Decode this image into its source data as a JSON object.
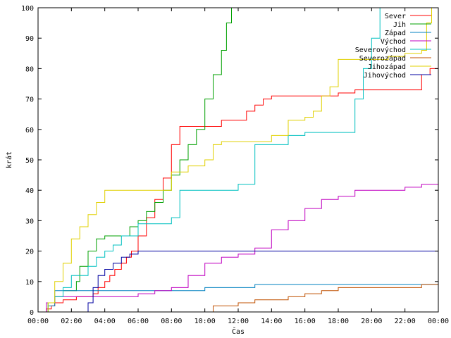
{
  "chart_data": {
    "type": "line",
    "xlabel": "Čas",
    "ylabel": "krát",
    "xlim": [
      0,
      24
    ],
    "ylim": [
      0,
      100
    ],
    "grid": false,
    "legend_position": "top-right",
    "x_ticks": [
      {
        "v": 0,
        "label": "00:00"
      },
      {
        "v": 2,
        "label": "02:00"
      },
      {
        "v": 4,
        "label": "04:00"
      },
      {
        "v": 6,
        "label": "06:00"
      },
      {
        "v": 8,
        "label": "08:00"
      },
      {
        "v": 10,
        "label": "10:00"
      },
      {
        "v": 12,
        "label": "12:00"
      },
      {
        "v": 14,
        "label": "14:00"
      },
      {
        "v": 16,
        "label": "16:00"
      },
      {
        "v": 18,
        "label": "18:00"
      },
      {
        "v": 20,
        "label": "20:00"
      },
      {
        "v": 22,
        "label": "22:00"
      },
      {
        "v": 24,
        "label": "00:00"
      }
    ],
    "y_ticks": [
      {
        "v": 0,
        "label": "0"
      },
      {
        "v": 10,
        "label": "10"
      },
      {
        "v": 20,
        "label": "20"
      },
      {
        "v": 30,
        "label": "30"
      },
      {
        "v": 40,
        "label": "40"
      },
      {
        "v": 50,
        "label": "50"
      },
      {
        "v": 60,
        "label": "60"
      },
      {
        "v": 70,
        "label": "70"
      },
      {
        "v": 80,
        "label": "80"
      },
      {
        "v": 90,
        "label": "90"
      },
      {
        "v": 100,
        "label": "100"
      }
    ],
    "series": [
      {
        "name": "Sever",
        "color": "#ff0000",
        "x": [
          0.3,
          0.5,
          0.8,
          1.0,
          1.5,
          2.3,
          3.0,
          3.3,
          3.6,
          4.0,
          4.3,
          4.6,
          5.0,
          5.3,
          5.6,
          6.0,
          6.5,
          7.0,
          7.5,
          8.0,
          8.5,
          9.0,
          10.0,
          11.0,
          12.0,
          12.5,
          13.0,
          13.5,
          14.0,
          15.0,
          16.0,
          17.0,
          18.0,
          19.0,
          20.0,
          22.0,
          22.9,
          23.0,
          23.5,
          24.0
        ],
        "y": [
          0,
          1,
          2,
          3,
          4,
          5,
          5,
          6,
          8,
          10,
          12,
          14,
          16,
          18,
          20,
          25,
          31,
          37,
          44,
          55,
          61,
          61,
          61,
          63,
          63,
          66,
          68,
          70,
          71,
          71,
          71,
          71,
          72,
          73,
          73,
          73,
          73,
          78,
          80,
          80
        ]
      },
      {
        "name": "Jih",
        "color": "#00a000",
        "x": [
          0.3,
          0.6,
          1.0,
          1.5,
          2.0,
          2.3,
          2.5,
          3.0,
          3.5,
          4.0,
          4.5,
          5.0,
          5.5,
          6.0,
          6.5,
          7.0,
          7.5,
          8.0,
          8.5,
          9.0,
          9.5,
          10.0,
          10.5,
          11.0,
          11.3,
          11.6
        ],
        "y": [
          0,
          3,
          5,
          7,
          7,
          10,
          15,
          20,
          24,
          25,
          25,
          25,
          28,
          30,
          33,
          36,
          40,
          45,
          50,
          55,
          60,
          70,
          78,
          86,
          95,
          100
        ]
      },
      {
        "name": "Západ",
        "color": "#0080c0",
        "x": [
          0.2,
          0.6,
          1.0,
          2.0,
          4.0,
          6.0,
          8.0,
          10.0,
          12.0,
          13.0,
          14.0,
          18.0,
          20.0,
          22.0,
          24.0
        ],
        "y": [
          0,
          2,
          7,
          7,
          7,
          7,
          7,
          8,
          8,
          9,
          9,
          9,
          9,
          9,
          9
        ]
      },
      {
        "name": "Východ",
        "color": "#c000c0",
        "x": [
          0.1,
          0.5,
          1.0,
          3.0,
          5.0,
          6.0,
          7.0,
          8.0,
          9.0,
          10.0,
          11.0,
          12.0,
          13.0,
          14.0,
          15.0,
          16.0,
          17.0,
          18.0,
          19.0,
          20.0,
          21.0,
          22.0,
          23.0,
          24.0
        ],
        "y": [
          0,
          3,
          5,
          5,
          5,
          6,
          7,
          8,
          12,
          16,
          18,
          19,
          21,
          27,
          30,
          34,
          37,
          38,
          40,
          40,
          40,
          41,
          42,
          42
        ]
      },
      {
        "name": "Severovýchod",
        "color": "#00c0c0",
        "x": [
          0.1,
          0.6,
          1.0,
          1.5,
          2.0,
          2.5,
          3.0,
          3.5,
          4.0,
          4.5,
          5.0,
          6.0,
          7.0,
          7.8,
          8.0,
          8.5,
          9.0,
          10.0,
          11.0,
          12.0,
          13.0,
          14.0,
          15.0,
          16.0,
          17.0,
          18.0,
          18.5,
          19.0,
          19.5,
          20.0,
          20.5
        ],
        "y": [
          0,
          3,
          5,
          8,
          12,
          12,
          15,
          18,
          20,
          22,
          25,
          29,
          29,
          29,
          31,
          40,
          40,
          40,
          40,
          42,
          55,
          55,
          58,
          59,
          59,
          59,
          59,
          70,
          80,
          90,
          100
        ]
      },
      {
        "name": "Severozápad",
        "color": "#c05000",
        "x": [
          10.3,
          10.5,
          11.5,
          12.0,
          13.0,
          14.0,
          15.0,
          16.0,
          17.0,
          18.0,
          19.0,
          20.0,
          21.0,
          22.0,
          23.0,
          24.0
        ],
        "y": [
          0,
          2,
          2,
          3,
          4,
          4,
          5,
          6,
          7,
          8,
          8,
          8,
          8,
          8,
          9,
          10
        ]
      },
      {
        "name": "Jihozápad",
        "color": "#e0d000",
        "x": [
          0.2,
          0.6,
          1.0,
          1.5,
          2.0,
          2.5,
          3.0,
          3.5,
          4.0,
          5.0,
          6.0,
          7.0,
          8.0,
          8.5,
          9.0,
          10.0,
          10.5,
          11.0,
          12.0,
          13.0,
          13.5,
          14.0,
          15.0,
          16.0,
          16.5,
          17.0,
          17.5,
          18.0,
          19.0,
          20.0,
          21.0,
          22.0,
          23.0,
          23.3,
          23.6
        ],
        "y": [
          0,
          3,
          10,
          16,
          24,
          28,
          32,
          36,
          40,
          40,
          40,
          40,
          46,
          46,
          48,
          50,
          55,
          56,
          56,
          56,
          56,
          58,
          63,
          64,
          66,
          71,
          74,
          83,
          83,
          83,
          84,
          85,
          86,
          95,
          100
        ]
      },
      {
        "name": "Jihovýchod",
        "color": "#0000a0",
        "x": [
          2.8,
          3.0,
          3.3,
          3.6,
          4.0,
          4.5,
          5.0,
          5.5,
          6.0,
          8.0,
          10.0,
          12.0,
          14.0,
          16.0,
          18.0,
          20.0,
          22.0,
          24.0
        ],
        "y": [
          0,
          3,
          8,
          12,
          14,
          16,
          18,
          19,
          20,
          20,
          20,
          20,
          20,
          20,
          20,
          20,
          20,
          20
        ]
      }
    ]
  }
}
